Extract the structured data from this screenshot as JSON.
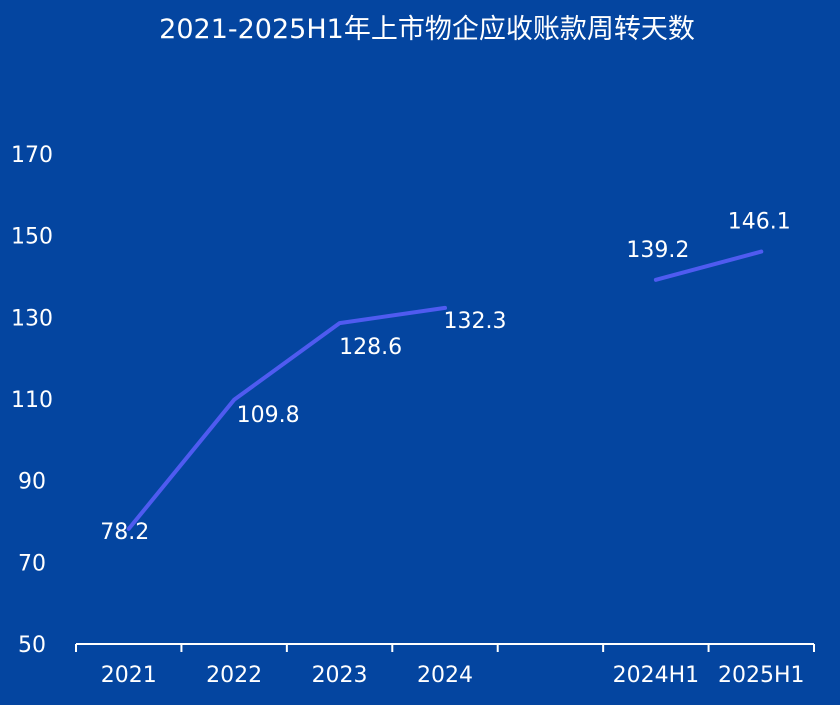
{
  "colors": {
    "background": "#0445a0",
    "line": "#4f5bf0",
    "text": "#ffffff"
  },
  "chart_data": {
    "type": "line",
    "title": "2021-2025H1年上市物企应收账款周转天数",
    "xlabel": "",
    "ylabel": "",
    "ylim": [
      50,
      170
    ],
    "yticks": [
      50,
      70,
      90,
      110,
      130,
      150,
      170
    ],
    "categories": [
      "2021",
      "2022",
      "2023",
      "2024",
      "",
      "2024H1",
      "2025H1"
    ],
    "grid": false,
    "legend": "none",
    "segments": [
      {
        "x": [
          "2021",
          "2022",
          "2023",
          "2024"
        ],
        "values": [
          78.2,
          109.8,
          128.6,
          132.3
        ],
        "labels": [
          "78.2",
          "109.8",
          "128.6",
          "132.3"
        ]
      },
      {
        "x": [
          "2024H1",
          "2025H1"
        ],
        "values": [
          139.2,
          146.1
        ],
        "labels": [
          "139.2",
          "146.1"
        ]
      }
    ]
  }
}
